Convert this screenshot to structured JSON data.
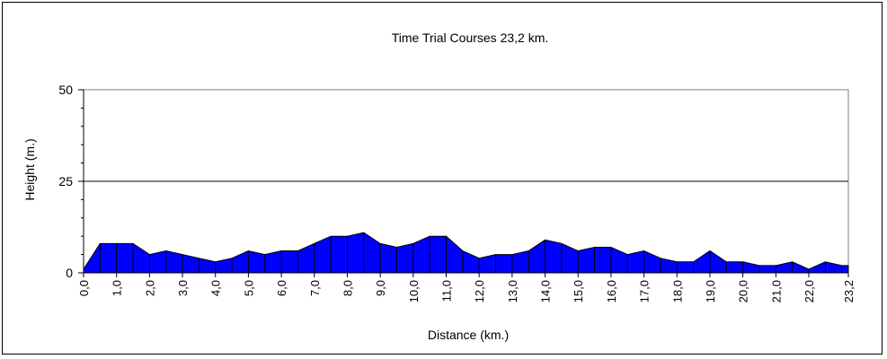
{
  "chart_data": {
    "type": "area",
    "title": "Time Trial Courses  23,2 km.",
    "xlabel": "Distance (km.)",
    "ylabel": "Height (m.)",
    "xlim": [
      0,
      23.2
    ],
    "ylim": [
      0,
      50
    ],
    "y_ticks": [
      "0",
      "25",
      "50"
    ],
    "x_ticks": [
      "0,0",
      "1,0",
      "2,0",
      "3,0",
      "4,0",
      "5,0",
      "6,0",
      "7,0",
      "8,0",
      "9,0",
      "10,0",
      "11,0",
      "12,0",
      "13,0",
      "14,0",
      "15,0",
      "16,0",
      "17,0",
      "18,0",
      "19,0",
      "20,0",
      "21,0",
      "22,0",
      "23,2"
    ],
    "x_tick_values": [
      0,
      1,
      2,
      3,
      4,
      5,
      6,
      7,
      8,
      9,
      10,
      11,
      12,
      13,
      14,
      15,
      16,
      17,
      18,
      19,
      20,
      21,
      22,
      23.2
    ],
    "fill_color": "#0000FF",
    "gridline_at": 25,
    "x": [
      0,
      0.5,
      1,
      1.5,
      2,
      2.5,
      3,
      3.5,
      4,
      4.5,
      5,
      5.5,
      6,
      6.5,
      7,
      7.5,
      8,
      8.5,
      9,
      9.5,
      10,
      10.5,
      11,
      11.5,
      12,
      12.5,
      13,
      13.5,
      14,
      14.5,
      15,
      15.5,
      16,
      16.5,
      17,
      17.5,
      18,
      18.5,
      19,
      19.5,
      20,
      20.5,
      21,
      21.5,
      22,
      22.5,
      23,
      23.2
    ],
    "values": [
      1,
      8,
      8,
      8,
      5,
      6,
      5,
      4,
      3,
      4,
      6,
      5,
      6,
      6,
      8,
      10,
      10,
      11,
      8,
      7,
      8,
      10,
      10,
      6,
      4,
      5,
      5,
      6,
      9,
      8,
      6,
      7,
      7,
      5,
      6,
      4,
      3,
      3,
      6,
      3,
      3,
      2,
      2,
      3,
      1,
      3,
      2,
      2
    ]
  }
}
